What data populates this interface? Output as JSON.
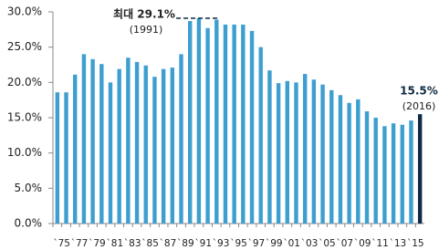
{
  "chart_data": {
    "type": "bar",
    "categories": [
      "`75",
      null,
      "`77",
      null,
      "`79",
      null,
      "`81",
      null,
      "`83",
      null,
      "`85",
      null,
      "`87",
      null,
      "`89",
      null,
      "`91",
      null,
      "`93",
      null,
      "`95",
      null,
      "`97",
      null,
      "`99",
      null,
      "`01",
      null,
      "`03",
      null,
      "`05",
      null,
      "`07",
      null,
      "`09",
      null,
      "`11",
      null,
      "`13",
      null,
      "`15",
      null
    ],
    "values": [
      18.6,
      18.6,
      21.1,
      24.0,
      23.3,
      22.6,
      20.0,
      21.9,
      23.5,
      22.9,
      22.4,
      20.8,
      21.9,
      22.1,
      24.0,
      28.7,
      29.1,
      27.7,
      28.9,
      28.2,
      28.2,
      28.2,
      27.3,
      25.0,
      21.7,
      19.9,
      20.2,
      20.0,
      21.2,
      20.4,
      19.7,
      18.9,
      18.2,
      17.1,
      17.6,
      15.9,
      15.0,
      13.8,
      14.2,
      14.0,
      14.6,
      15.5
    ],
    "colors": [
      "#3d9fd0",
      "#3d9fd0",
      "#3d9fd0",
      "#3d9fd0",
      "#3d9fd0",
      "#3d9fd0",
      "#3d9fd0",
      "#3d9fd0",
      "#3d9fd0",
      "#3d9fd0",
      "#3d9fd0",
      "#3d9fd0",
      "#3d9fd0",
      "#3d9fd0",
      "#3d9fd0",
      "#3d9fd0",
      "#3d9fd0",
      "#3d9fd0",
      "#3d9fd0",
      "#3d9fd0",
      "#3d9fd0",
      "#3d9fd0",
      "#3d9fd0",
      "#3d9fd0",
      "#3d9fd0",
      "#3d9fd0",
      "#3d9fd0",
      "#3d9fd0",
      "#3d9fd0",
      "#3d9fd0",
      "#3d9fd0",
      "#3d9fd0",
      "#3d9fd0",
      "#3d9fd0",
      "#3d9fd0",
      "#3d9fd0",
      "#3d9fd0",
      "#3d9fd0",
      "#3d9fd0",
      "#3d9fd0",
      "#3d9fd0",
      "#0f2a44"
    ],
    "ylim": [
      0,
      30
    ],
    "yticks": [
      {
        "value": 0,
        "label": "0.0%"
      },
      {
        "value": 5,
        "label": "5.0%"
      },
      {
        "value": 10,
        "label": "10.0%"
      },
      {
        "value": 15,
        "label": "15.0%"
      },
      {
        "value": 20,
        "label": "20.0%"
      },
      {
        "value": 25,
        "label": "25.0%"
      },
      {
        "value": 30,
        "label": "30.0%"
      }
    ],
    "grid": false,
    "annotations": [
      {
        "text": "최대 29.1%",
        "sub": "(1991)"
      },
      {
        "text": "15.5%",
        "sub": "(2016)"
      }
    ]
  }
}
